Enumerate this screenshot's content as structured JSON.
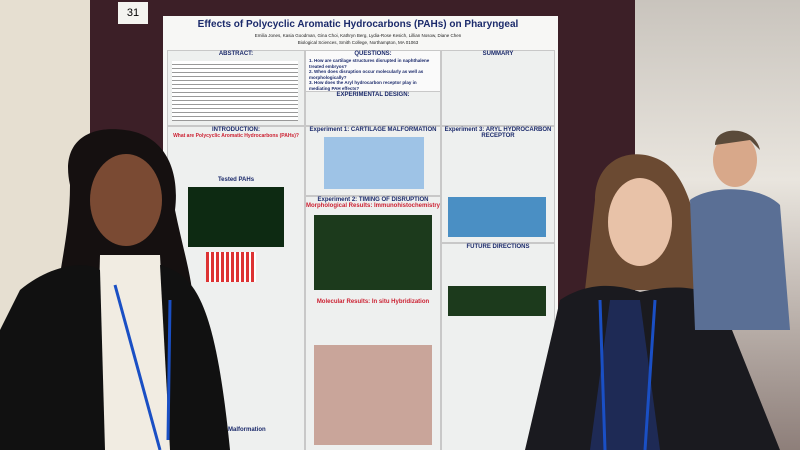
{
  "sign": "31",
  "poster": {
    "title": "Effects of Polycyclic Aromatic Hydrocarbons (PAHs) on Pharyngeal",
    "authors": "Emilia Jones, Kasia Goodman, Gina Choi, Kathryn Berg, Lydia-Rose Kesich, Lillian Nosow, Diane Chen",
    "affiliation": "Biological Sciences, Smith College, Northampton, MA 01063",
    "abstract": {
      "heading": "ABSTRACT:"
    },
    "questions": {
      "heading": "QUESTIONS:",
      "items": [
        "1. How are cartilage structures disrupted in naphthalene treated embryos?",
        "2. When does disruption occur molecularly as well as morphologically?",
        "3. How does the Aryl hydrocarbon receptor play in mediating PAH effects?"
      ]
    },
    "summary": {
      "heading": "SUMMARY"
    },
    "experimental_design": {
      "heading": "EXPERIMENTAL DESIGN:"
    },
    "introduction": {
      "heading": "INTRODUCTION:",
      "subheading": "What are Polycyclic Aromatic Hydrocarbons (PAHs)?",
      "tested": "Tested PAHs",
      "pouch": "Pouch Malformation"
    },
    "experiment1": {
      "heading": "Experiment 1: CARTILAGE MALFORMATION"
    },
    "experiment2": {
      "heading": "Experiment 2: TIMING OF DISRUPTION",
      "morph": "Morphological Results: Immunohistochemistry",
      "molec": "Molecular Results: In situ Hybridization"
    },
    "experiment3": {
      "heading": "Experiment 3: ARYL HYDROCARBON RECEPTOR"
    },
    "future": {
      "heading": "FUTURE DIRECTIONS"
    }
  }
}
